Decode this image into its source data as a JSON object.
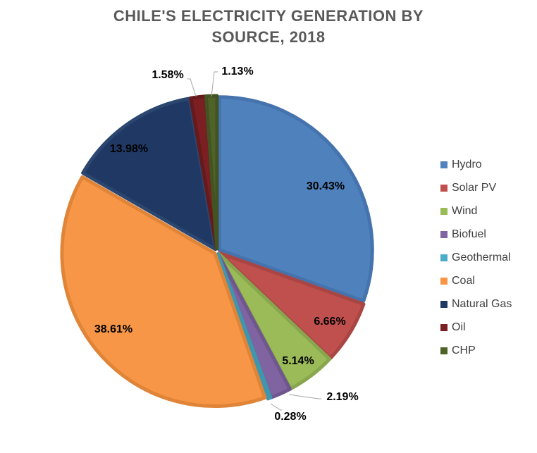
{
  "chart_data": {
    "type": "pie",
    "title_lines": [
      "CHILE'S ELECTRICITY GENERATION BY",
      "SOURCE, 2018"
    ],
    "slices": [
      {
        "name": "Hydro",
        "value": 30.43,
        "label": "30.43%",
        "color": "#4F81BD",
        "edge": "#4573AE"
      },
      {
        "name": "Solar PV",
        "value": 6.66,
        "label": "6.66%",
        "color": "#C0504D",
        "edge": "#A94644"
      },
      {
        "name": "Wind",
        "value": 5.14,
        "label": "5.14%",
        "color": "#9BBB59",
        "edge": "#88A64D"
      },
      {
        "name": "Biofuel",
        "value": 2.19,
        "label": "2.19%",
        "color": "#8064A2",
        "edge": "#6F578E"
      },
      {
        "name": "Geothermal",
        "value": 0.28,
        "label": "0.28%",
        "color": "#4BACC6",
        "edge": "#3F97AE"
      },
      {
        "name": "Coal",
        "value": 38.61,
        "label": "38.61%",
        "color": "#F79646",
        "edge": "#E08438"
      },
      {
        "name": "Natural Gas",
        "value": 13.98,
        "label": "13.98%",
        "color": "#1F3864",
        "edge": "#2B466F"
      },
      {
        "name": "Oil",
        "value": 1.58,
        "label": "1.58%",
        "color": "#7B1F22",
        "edge": "#661A1C"
      },
      {
        "name": "CHP",
        "value": 1.13,
        "label": "1.13%",
        "color": "#4F6228",
        "edge": "#435422"
      }
    ],
    "legend_position": "right"
  }
}
